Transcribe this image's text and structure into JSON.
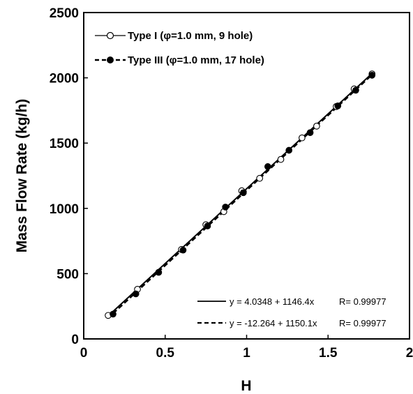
{
  "chart_data": {
    "type": "scatter",
    "xlabel": "H",
    "ylabel": "Mass Flow Rate (kg/h)",
    "xlim": [
      0,
      2
    ],
    "ylim": [
      0,
      2500
    ],
    "xticks": [
      "0",
      "0.5",
      "1",
      "1.5",
      "2"
    ],
    "yticks": [
      "0",
      "500",
      "1000",
      "1500",
      "2000",
      "2500"
    ],
    "grid": false,
    "legend_position": "top-left",
    "series": [
      {
        "name": "Type I (φ=1.0 mm, 9 hole)",
        "marker": "open-circle",
        "line": "solid",
        "color": "#000000",
        "x": [
          0.15,
          0.33,
          0.6,
          0.75,
          0.86,
          0.97,
          1.08,
          1.21,
          1.34,
          1.43,
          1.55,
          1.66,
          1.77
        ],
        "y": [
          180,
          380,
          685,
          875,
          975,
          1135,
          1230,
          1375,
          1540,
          1630,
          1780,
          1915,
          2030
        ]
      },
      {
        "name": "Type III (φ=1.0 mm, 17 hole)",
        "marker": "filled-circle",
        "line": "dashed",
        "color": "#000000",
        "x": [
          0.18,
          0.32,
          0.46,
          0.61,
          0.76,
          0.87,
          0.98,
          1.13,
          1.26,
          1.39,
          1.56,
          1.67,
          1.77
        ],
        "y": [
          190,
          345,
          510,
          680,
          865,
          1010,
          1120,
          1320,
          1445,
          1580,
          1785,
          1905,
          2020
        ]
      }
    ],
    "fit_lines": [
      {
        "equation": "y = 4.0348 + 1146.4x",
        "r_text": "R= 0.99977",
        "intercept": 4.0348,
        "slope": 1146.4,
        "x_range": [
          0.18,
          1.77
        ],
        "line": "solid"
      },
      {
        "equation": "y = -12.264 + 1150.1x",
        "r_text": "R= 0.99977",
        "intercept": -12.264,
        "slope": 1150.1,
        "x_range": [
          0.18,
          1.77
        ],
        "line": "dashed"
      }
    ]
  }
}
